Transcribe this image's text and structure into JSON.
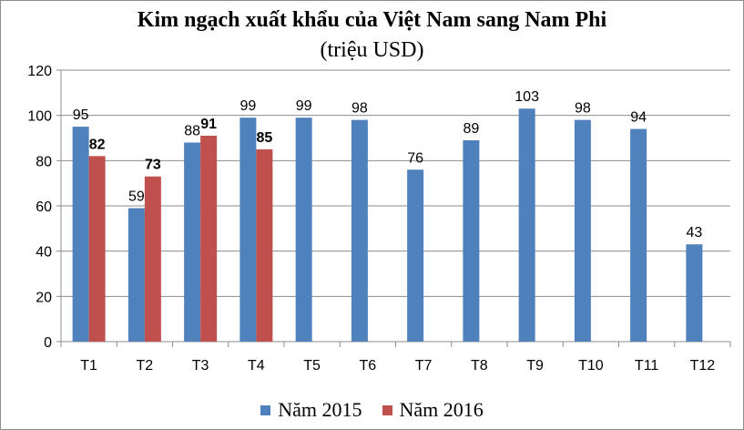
{
  "chart_data": {
    "type": "bar",
    "title": "Kim ngạch xuất khẩu của Việt Nam sang Nam Phi",
    "subtitle": "(triệu USD)",
    "categories": [
      "T1",
      "T2",
      "T3",
      "T4",
      "T5",
      "T6",
      "T7",
      "T8",
      "T9",
      "T10",
      "T11",
      "T12"
    ],
    "series": [
      {
        "name": "Năm 2015",
        "color": "#4f81bd",
        "values": [
          95,
          59,
          88,
          99,
          99,
          98,
          76,
          89,
          103,
          98,
          94,
          43
        ]
      },
      {
        "name": "Năm 2016",
        "color": "#c0504d",
        "values": [
          82,
          73,
          91,
          85,
          null,
          null,
          null,
          null,
          null,
          null,
          null,
          null
        ]
      }
    ],
    "ylim": [
      0,
      120
    ],
    "yticks": [
      0,
      20,
      40,
      60,
      80,
      100,
      120
    ],
    "grid": true,
    "legend": "bottom"
  }
}
